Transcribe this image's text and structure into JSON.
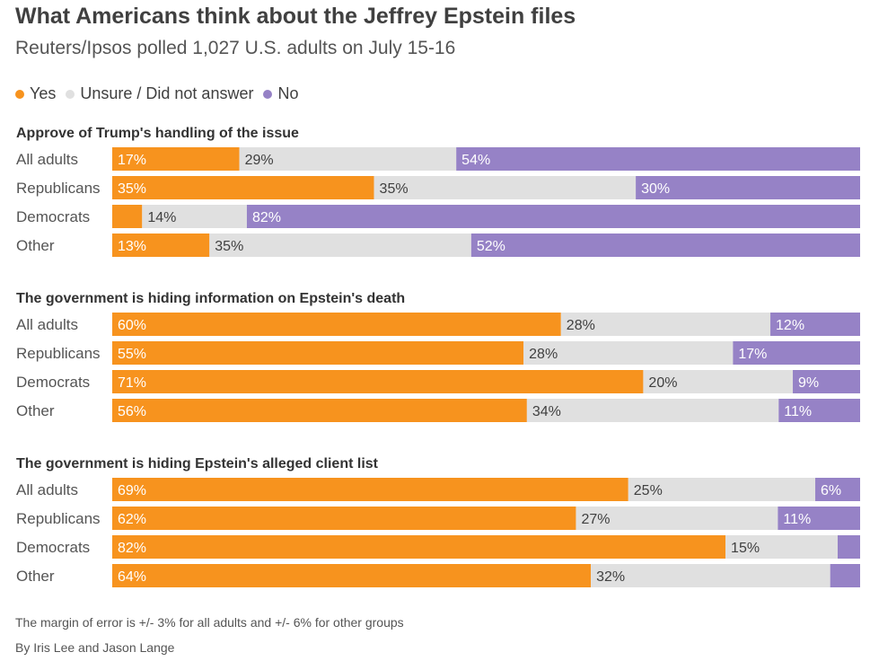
{
  "title": "What Americans think about the Jeffrey Epstein files",
  "subtitle": "Reuters/Ipsos polled 1,027 U.S. adults on July 15-16",
  "legend": [
    {
      "label": "Yes",
      "color": "#f7931e"
    },
    {
      "label": "Unsure / Did not answer",
      "color": "#e0e0e0"
    },
    {
      "label": "No",
      "color": "#9682c6"
    }
  ],
  "chart_data": {
    "type": "bar",
    "orientation": "horizontal",
    "stacked": true,
    "normalized": true,
    "series": [
      "Yes",
      "Unsure / Did not answer",
      "No"
    ],
    "colors": [
      "#f7931e",
      "#e0e0e0",
      "#9682c6"
    ],
    "panels": [
      {
        "title": "Approve of Trump's handling of the issue",
        "rows": [
          {
            "label": "All adults",
            "values": [
              17,
              29,
              54
            ],
            "labels": [
              "17%",
              "29%",
              "54%"
            ]
          },
          {
            "label": "Republicans",
            "values": [
              35,
              35,
              30
            ],
            "labels": [
              "35%",
              "35%",
              "30%"
            ]
          },
          {
            "label": "Democrats",
            "values": [
              4,
              14,
              82
            ],
            "labels": [
              "",
              "14%",
              "82%"
            ]
          },
          {
            "label": "Other",
            "values": [
              13,
              35,
              52
            ],
            "labels": [
              "13%",
              "35%",
              "52%"
            ]
          }
        ]
      },
      {
        "title": "The government is hiding information on Epstein's death",
        "rows": [
          {
            "label": "All adults",
            "values": [
              60,
              28,
              12
            ],
            "labels": [
              "60%",
              "28%",
              "12%"
            ]
          },
          {
            "label": "Republicans",
            "values": [
              55,
              28,
              17
            ],
            "labels": [
              "55%",
              "28%",
              "17%"
            ]
          },
          {
            "label": "Democrats",
            "values": [
              71,
              20,
              9
            ],
            "labels": [
              "71%",
              "20%",
              "9%"
            ]
          },
          {
            "label": "Other",
            "values": [
              56,
              34,
              11
            ],
            "labels": [
              "56%",
              "34%",
              "11%"
            ]
          }
        ]
      },
      {
        "title": "The government is hiding Epstein's alleged client list",
        "rows": [
          {
            "label": "All adults",
            "values": [
              69,
              25,
              6
            ],
            "labels": [
              "69%",
              "25%",
              "6%"
            ]
          },
          {
            "label": "Republicans",
            "values": [
              62,
              27,
              11
            ],
            "labels": [
              "62%",
              "27%",
              "11%"
            ]
          },
          {
            "label": "Democrats",
            "values": [
              82,
              15,
              3
            ],
            "labels": [
              "82%",
              "15%",
              ""
            ]
          },
          {
            "label": "Other",
            "values": [
              64,
              32,
              4
            ],
            "labels": [
              "64%",
              "32%",
              ""
            ]
          }
        ]
      }
    ]
  },
  "note": "The margin of error is +/- 3% for all adults and +/- 6% for other groups",
  "byline": "By Iris Lee and Jason Lange"
}
